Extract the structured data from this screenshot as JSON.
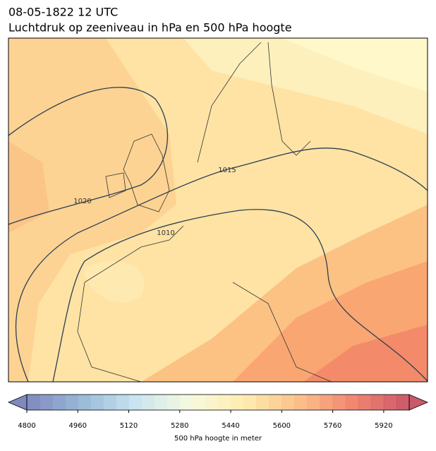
{
  "header": {
    "title": "08-05-1822 12 UTC",
    "subtitle": "Luchtdruk op zeeniveau in hPa en 500 hPa hoogte"
  },
  "isobars": [
    {
      "label": 1020
    },
    {
      "label": 1015
    },
    {
      "label": 1010
    }
  ],
  "colorbar": {
    "label": "500 hPa hoogte in meter",
    "lim": [
      4800,
      6000
    ],
    "level_step": 40,
    "ticks": [
      4800,
      4960,
      5120,
      5280,
      5440,
      5600,
      5760,
      5920
    ],
    "colormap": [
      "#6a74b4",
      "#86aed2",
      "#bfe0ee",
      "#f6f9d8",
      "#fee8a0",
      "#fcb474",
      "#ee7058",
      "#c13c50"
    ]
  }
}
